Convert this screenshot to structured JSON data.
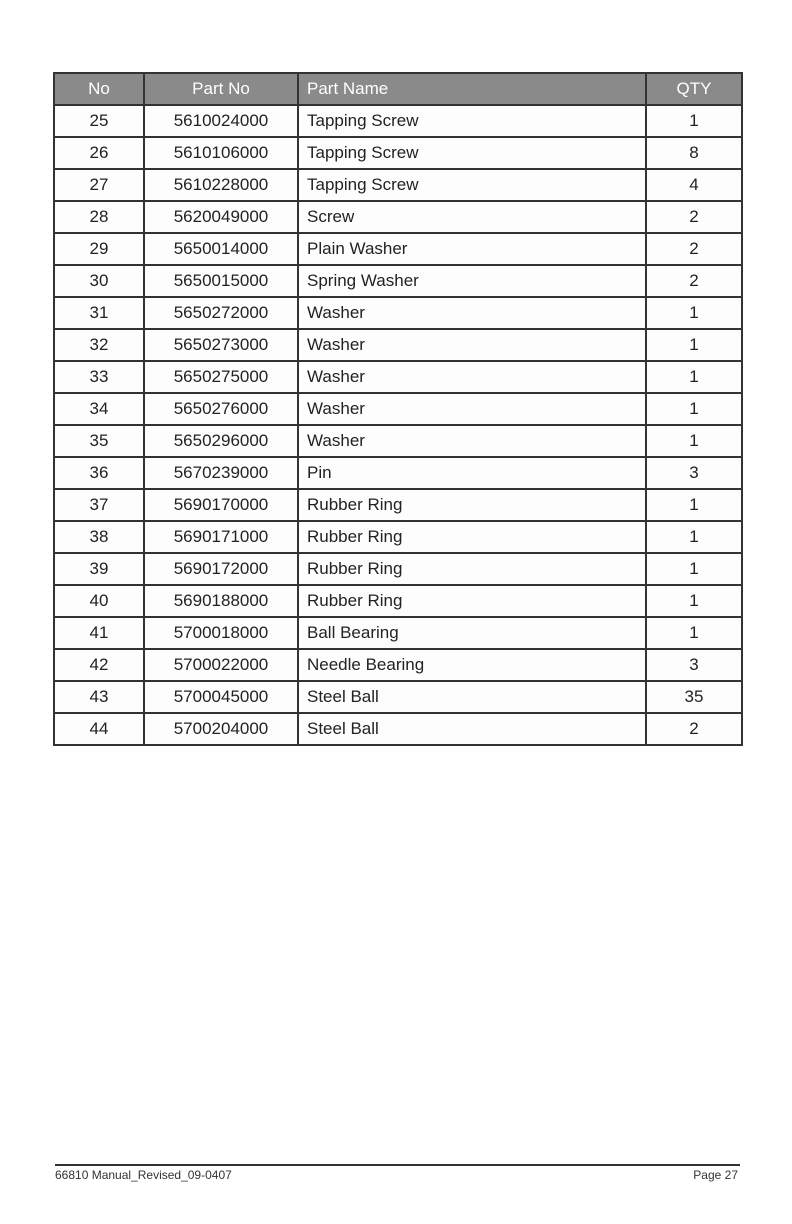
{
  "table": {
    "headers": [
      "No",
      "Part No",
      "Part Name",
      "QTY"
    ],
    "rows": [
      [
        "25",
        "5610024000",
        "Tapping Screw",
        "1"
      ],
      [
        "26",
        "5610106000",
        "Tapping Screw",
        "8"
      ],
      [
        "27",
        "5610228000",
        "Tapping Screw",
        "4"
      ],
      [
        "28",
        "5620049000",
        "Screw",
        "2"
      ],
      [
        "29",
        "5650014000",
        "Plain Washer",
        "2"
      ],
      [
        "30",
        "5650015000",
        "Spring Washer",
        "2"
      ],
      [
        "31",
        "5650272000",
        "Washer",
        "1"
      ],
      [
        "32",
        "5650273000",
        "Washer",
        "1"
      ],
      [
        "33",
        "5650275000",
        "Washer",
        "1"
      ],
      [
        "34",
        "5650276000",
        "Washer",
        "1"
      ],
      [
        "35",
        "5650296000",
        "Washer",
        "1"
      ],
      [
        "36",
        "5670239000",
        "Pin",
        "3"
      ],
      [
        "37",
        "5690170000",
        "Rubber Ring",
        "1"
      ],
      [
        "38",
        "5690171000",
        "Rubber Ring",
        "1"
      ],
      [
        "39",
        "5690172000",
        "Rubber Ring",
        "1"
      ],
      [
        "40",
        "5690188000",
        "Rubber Ring",
        "1"
      ],
      [
        "41",
        "5700018000",
        "Ball Bearing",
        "1"
      ],
      [
        "42",
        "5700022000",
        "Needle Bearing",
        "3"
      ],
      [
        "43",
        "5700045000",
        "Steel Ball",
        "35"
      ],
      [
        "44",
        "5700204000",
        "Steel Ball",
        "2"
      ]
    ]
  },
  "footer": {
    "left": "66810 Manual_Revised_09-0407",
    "right": "Page 27"
  }
}
